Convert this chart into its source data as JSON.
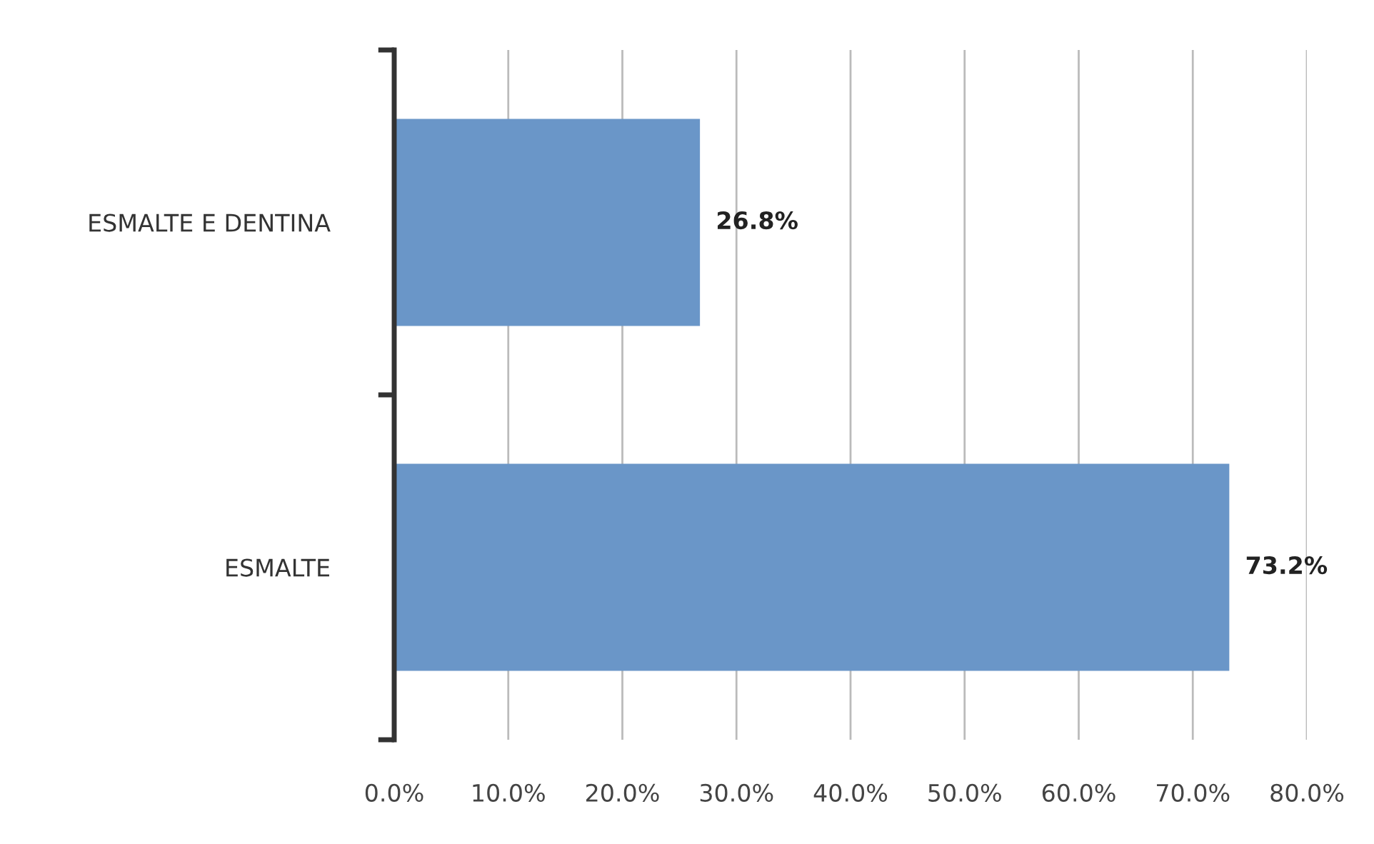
{
  "chart_data": {
    "type": "bar",
    "orientation": "horizontal",
    "categories": [
      "ESMALTE E DENTINA",
      "ESMALTE"
    ],
    "values": [
      26.8,
      73.2
    ],
    "color": "#6a96c8",
    "value_labels": [
      "26.8%",
      "73.2%"
    ],
    "xlim": [
      0,
      80
    ],
    "xticks": [
      {
        "value": 0,
        "label": "0.0%"
      },
      {
        "value": 10,
        "label": "10.0%"
      },
      {
        "value": 20,
        "label": "20.0%"
      },
      {
        "value": 30,
        "label": "30.0%"
      },
      {
        "value": 40,
        "label": "40.0%"
      },
      {
        "value": 50,
        "label": "50.0%"
      },
      {
        "value": 60,
        "label": "60.0%"
      },
      {
        "value": 70,
        "label": "70.0%"
      },
      {
        "value": 80,
        "label": "80.0%"
      }
    ],
    "grid": "x"
  }
}
